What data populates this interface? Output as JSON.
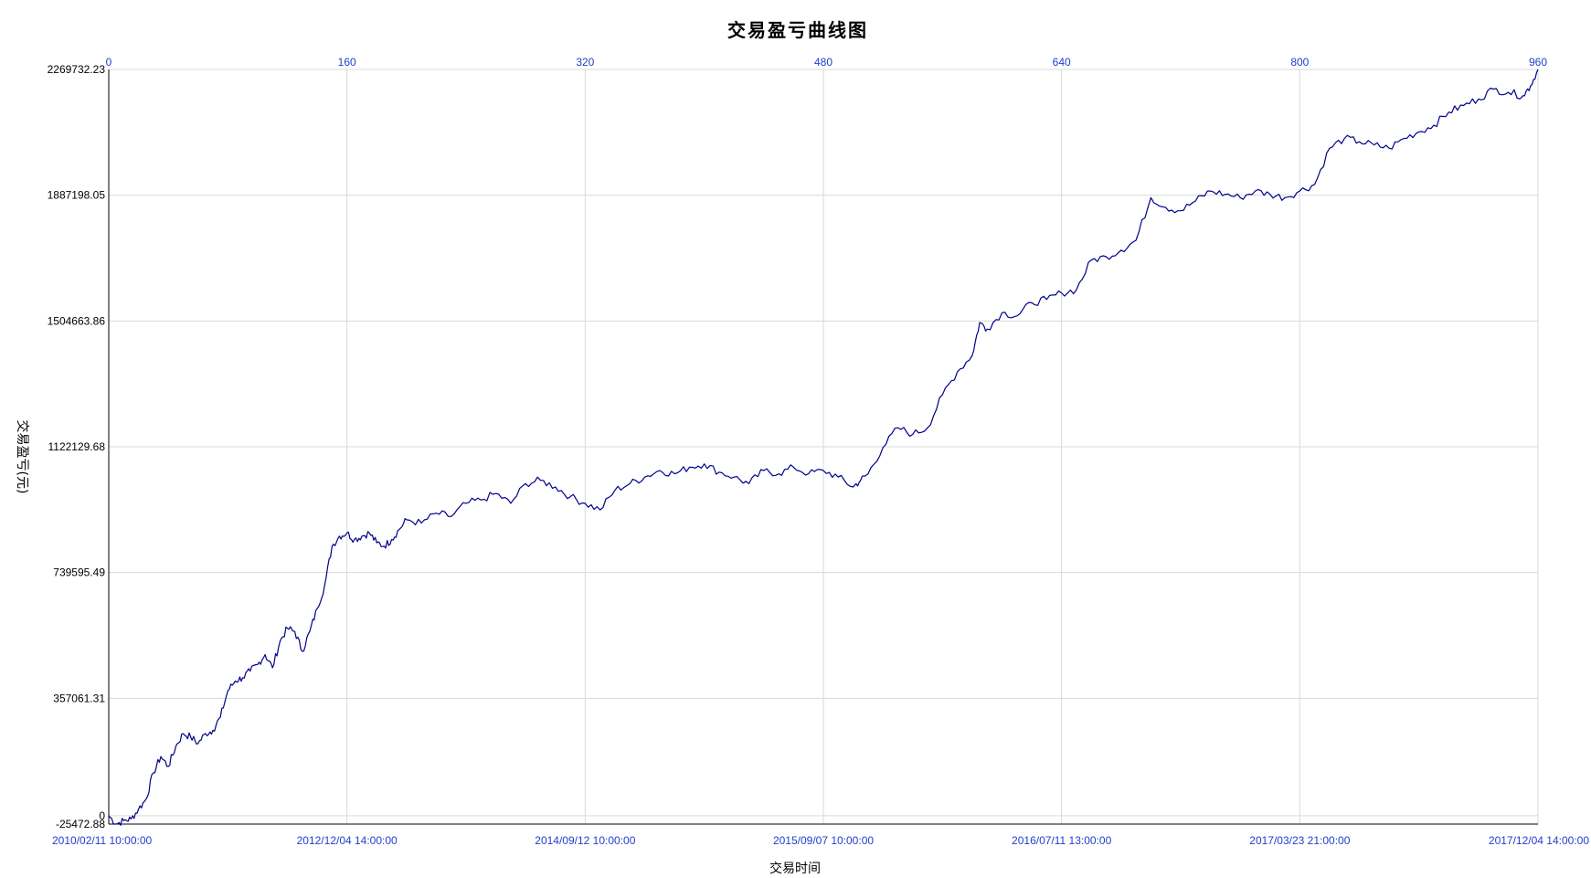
{
  "chart_data": {
    "type": "line",
    "title": "交易盈亏曲线图",
    "xlabel": "交易时间",
    "ylabel": "交易盈亏(元)",
    "ylim": [
      -25472.88,
      2269732.23
    ],
    "y_ticks": [
      "2269732.23",
      "1887198.05",
      "1504663.86",
      "1122129.68",
      "739595.49",
      "357061.31",
      "0",
      "-25472.88"
    ],
    "x_ticks": [
      "2010/02/11 10:00:00",
      "2012/12/04 14:00:00",
      "2014/09/12 10:00:00",
      "2015/09/07 10:00:00",
      "2016/07/11 13:00:00",
      "2017/03/23 21:00:00",
      "2017/12/04 14:00:00"
    ],
    "top_ticks": [
      "0",
      "160",
      "320",
      "480",
      "640",
      "800",
      "960"
    ],
    "top_range": [
      0,
      960
    ],
    "grid": true,
    "series": [
      {
        "color": "#00008b",
        "x": [
          0,
          5,
          10,
          15,
          20,
          25,
          30,
          35,
          40,
          45,
          50,
          55,
          60,
          65,
          70,
          75,
          80,
          85,
          90,
          95,
          100,
          105,
          110,
          115,
          120,
          125,
          130,
          135,
          140,
          145,
          150,
          155,
          160,
          165,
          170,
          175,
          180,
          185,
          190,
          195,
          200,
          210,
          220,
          230,
          240,
          250,
          260,
          270,
          280,
          290,
          300,
          310,
          320,
          330,
          340,
          350,
          360,
          370,
          380,
          390,
          400,
          410,
          420,
          430,
          440,
          450,
          460,
          470,
          480,
          490,
          500,
          505,
          510,
          520,
          530,
          540,
          550,
          560,
          570,
          580,
          585,
          590,
          600,
          610,
          620,
          630,
          640,
          650,
          660,
          670,
          680,
          690,
          700,
          710,
          720,
          730,
          740,
          750,
          760,
          770,
          780,
          790,
          800,
          810,
          820,
          830,
          840,
          850,
          860,
          870,
          880,
          890,
          900,
          910,
          920,
          930,
          940,
          950,
          955,
          960
        ],
        "y": [
          0,
          -25000,
          -15000,
          -10000,
          20000,
          50000,
          130000,
          180000,
          150000,
          210000,
          250000,
          240000,
          220000,
          250000,
          260000,
          300000,
          380000,
          410000,
          420000,
          440000,
          460000,
          490000,
          450000,
          530000,
          570000,
          560000,
          500000,
          560000,
          630000,
          700000,
          820000,
          850000,
          860000,
          840000,
          850000,
          860000,
          830000,
          820000,
          840000,
          870000,
          900000,
          890000,
          920000,
          910000,
          950000,
          960000,
          980000,
          950000,
          1010000,
          1020000,
          1000000,
          970000,
          950000,
          930000,
          990000,
          1010000,
          1030000,
          1050000,
          1040000,
          1060000,
          1070000,
          1045000,
          1030000,
          1010000,
          1050000,
          1040000,
          1060000,
          1040000,
          1050000,
          1030000,
          1000000,
          1020000,
          1040000,
          1120000,
          1180000,
          1160000,
          1180000,
          1280000,
          1350000,
          1400000,
          1500000,
          1480000,
          1530000,
          1520000,
          1560000,
          1570000,
          1590000,
          1600000,
          1690000,
          1700000,
          1720000,
          1750000,
          1880000,
          1850000,
          1840000,
          1870000,
          1900000,
          1890000,
          1880000,
          1900000,
          1890000,
          1880000,
          1900000,
          1920000,
          2030000,
          2060000,
          2050000,
          2040000,
          2030000,
          2060000,
          2080000,
          2100000,
          2140000,
          2160000,
          2180000,
          2210000,
          2200000,
          2190000,
          2220000,
          2269732.23
        ]
      }
    ]
  }
}
